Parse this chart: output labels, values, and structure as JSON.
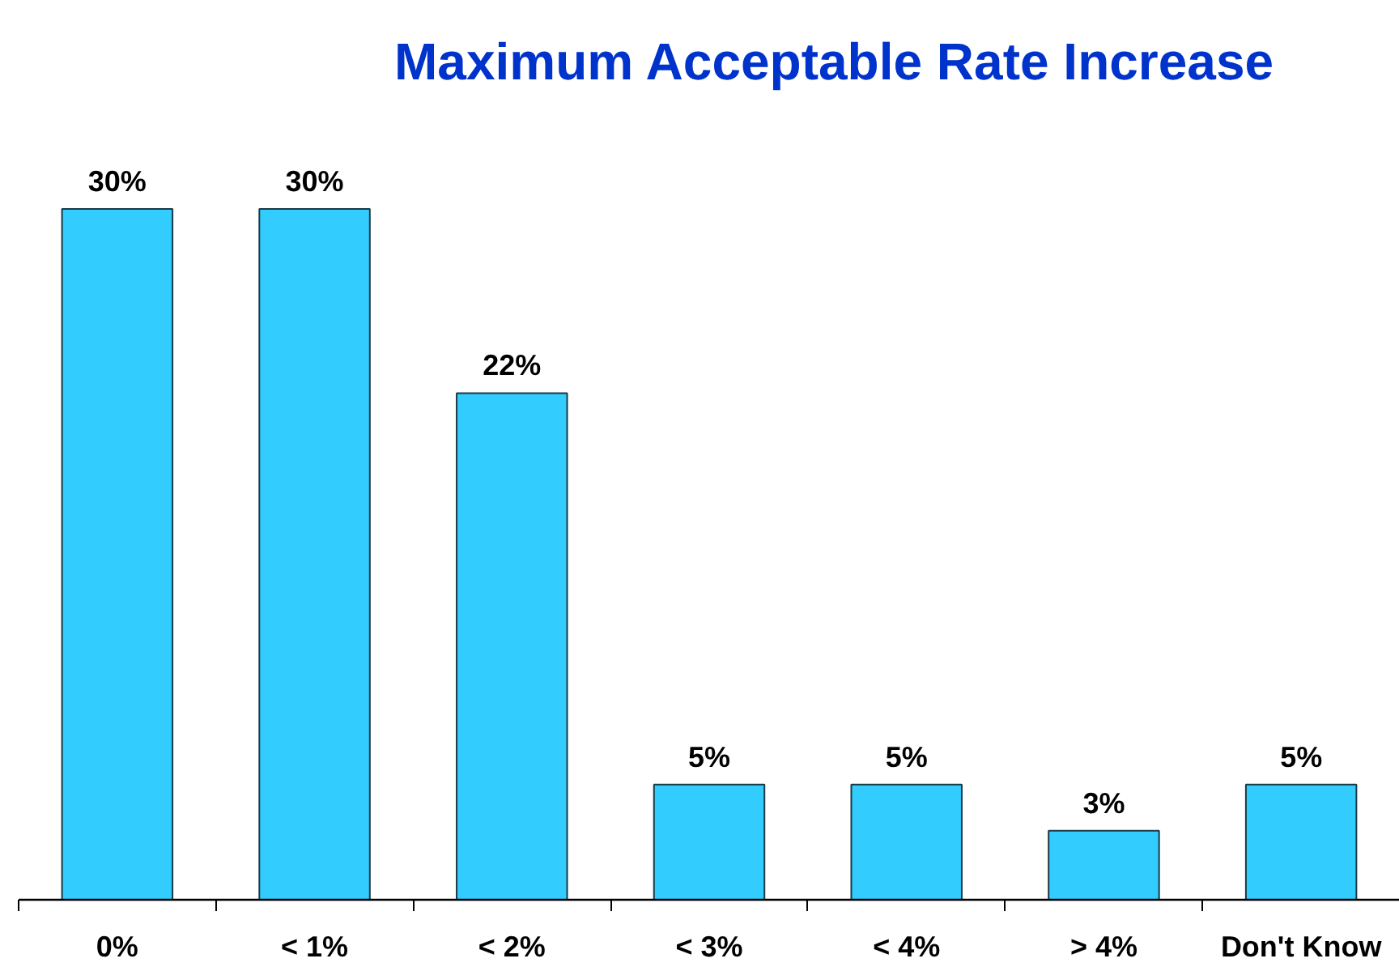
{
  "chart_data": {
    "type": "bar",
    "title": "Maximum Acceptable Rate Increase",
    "categories": [
      "0%",
      "< 1%",
      "< 2%",
      "< 3%",
      "< 4%",
      "> 4%",
      "Don't Know"
    ],
    "values": [
      30,
      30,
      22,
      5,
      5,
      3,
      5
    ],
    "value_labels": [
      "30%",
      "30%",
      "22%",
      "5%",
      "5%",
      "3%",
      "5%"
    ],
    "color": "#33ccff"
  }
}
